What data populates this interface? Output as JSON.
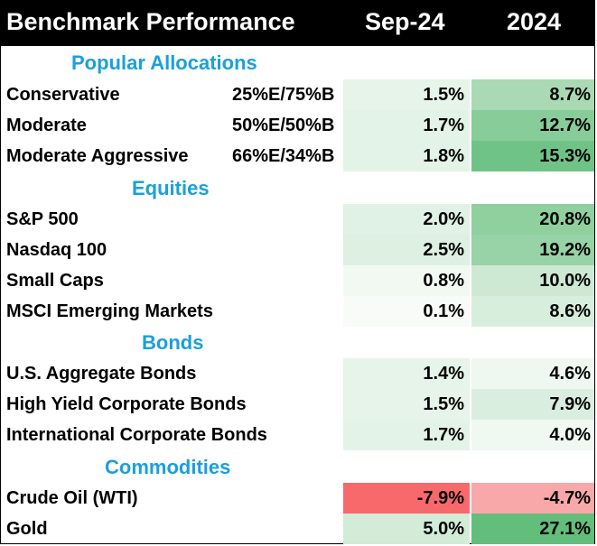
{
  "header": {
    "title": "Benchmark Performance",
    "col1": "Sep-24",
    "col2": "2024"
  },
  "sections": {
    "popular": "Popular Allocations",
    "equities": "Equities",
    "bonds": "Bonds",
    "commodities": "Commodities"
  },
  "rows": [
    {
      "name": "Conservative",
      "alloc": "25%E/75%B",
      "sep": "1.5%",
      "ytd": "8.7%",
      "sep_bg": "#e6f4ea",
      "ytd_bg": "#a9dab4"
    },
    {
      "name": "Moderate",
      "alloc": "50%E/50%B",
      "sep": "1.7%",
      "ytd": "12.7%",
      "sep_bg": "#e4f3e8",
      "ytd_bg": "#88cc99"
    },
    {
      "name": "Moderate Aggressive",
      "alloc": "66%E/34%B",
      "sep": "1.8%",
      "ytd": "15.3%",
      "sep_bg": "#e3f3e7",
      "ytd_bg": "#70c386"
    },
    {
      "name": "S&P 500",
      "alloc": "",
      "sep": "2.0%",
      "ytd": "20.8%",
      "sep_bg": "#e0f1e5",
      "ytd_bg": "#8fd09e"
    },
    {
      "name": "Nasdaq 100",
      "alloc": "",
      "sep": "2.5%",
      "ytd": "19.2%",
      "sep_bg": "#ddf0e1",
      "ytd_bg": "#97d3a6"
    },
    {
      "name": "Small Caps",
      "alloc": "",
      "sep": "0.8%",
      "ytd": "10.0%",
      "sep_bg": "#f2f9f3",
      "ytd_bg": "#cde9d4"
    },
    {
      "name": "MSCI Emerging Markets",
      "alloc": "",
      "sep": "0.1%",
      "ytd": "8.6%",
      "sep_bg": "#f8fbf8",
      "ytd_bg": "#d8eedd"
    },
    {
      "name": "U.S. Aggregate Bonds",
      "alloc": "",
      "sep": "1.4%",
      "ytd": "4.6%",
      "sep_bg": "#e6f4ea",
      "ytd_bg": "#eef7f0"
    },
    {
      "name": "High Yield Corporate Bonds",
      "alloc": "",
      "sep": "1.5%",
      "ytd": "7.9%",
      "sep_bg": "#e6f4ea",
      "ytd_bg": "#daeedf"
    },
    {
      "name": "International Corporate Bonds",
      "alloc": "",
      "sep": "1.7%",
      "ytd": "4.0%",
      "sep_bg": "#e4f3e8",
      "ytd_bg": "#f0f8f2"
    },
    {
      "name": "Crude Oil (WTI)",
      "alloc": "",
      "sep": "-7.9%",
      "ytd": "-4.7%",
      "sep_bg": "#f8696b",
      "ytd_bg": "#f8a8a9"
    },
    {
      "name": "Gold",
      "alloc": "",
      "sep": "5.0%",
      "ytd": "27.1%",
      "sep_bg": "#d2ecd8",
      "ytd_bg": "#63be7b"
    }
  ]
}
